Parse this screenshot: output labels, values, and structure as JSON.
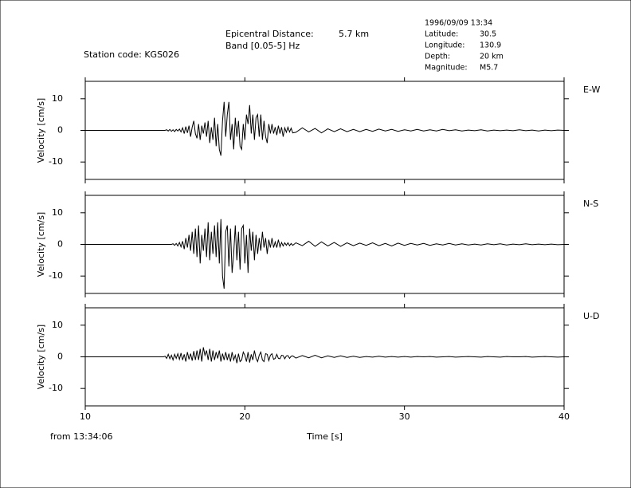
{
  "header": {
    "station": "Station code: KGS026",
    "distance_label": "Epicentral Distance:",
    "distance": "5.7 km",
    "band": "Band [0.05-5] Hz",
    "datetime": "1996/09/09 13:34",
    "params": [
      {
        "label": "Latitude:",
        "value": "30.5"
      },
      {
        "label": "Longitude:",
        "value": "130.9"
      },
      {
        "label": "Depth:",
        "value": "20 km"
      },
      {
        "label": "Magnitude:",
        "value": "M5.7"
      }
    ],
    "time_origin": "from 13:34:06"
  },
  "chart_data": [
    {
      "type": "line",
      "label": "E-W",
      "ylabel": "Velocity [cm/s]",
      "color": "#000000",
      "xlim": [
        10,
        40
      ],
      "xticks": [
        10,
        20,
        30,
        40
      ],
      "ylim": [
        -15.5,
        15.5
      ],
      "yticks": [
        -10,
        0,
        10
      ],
      "x": [
        10,
        14.9,
        15.0,
        15.1,
        15.2,
        15.3,
        15.4,
        15.5,
        15.6,
        15.7,
        15.8,
        15.9,
        16.0,
        16.1,
        16.2,
        16.3,
        16.4,
        16.5,
        16.6,
        16.7,
        16.8,
        16.9,
        17.0,
        17.1,
        17.2,
        17.3,
        17.4,
        17.5,
        17.6,
        17.7,
        17.8,
        17.9,
        18.0,
        18.1,
        18.2,
        18.3,
        18.4,
        18.5,
        18.6,
        18.7,
        18.8,
        18.9,
        19.0,
        19.1,
        19.2,
        19.3,
        19.4,
        19.5,
        19.6,
        19.7,
        19.8,
        19.9,
        20.0,
        20.1,
        20.2,
        20.3,
        20.4,
        20.5,
        20.6,
        20.7,
        20.8,
        20.9,
        21.0,
        21.1,
        21.2,
        21.3,
        21.4,
        21.5,
        21.6,
        21.7,
        21.8,
        21.9,
        22.0,
        22.1,
        22.2,
        22.3,
        22.4,
        22.5,
        22.6,
        22.7,
        22.8,
        22.9,
        23.0,
        23.2,
        23.6,
        24.0,
        24.4,
        24.8,
        25.2,
        25.6,
        26.0,
        26.4,
        26.8,
        27.2,
        27.6,
        28.0,
        28.4,
        28.8,
        29.2,
        29.6,
        30.0,
        30.4,
        30.8,
        31.2,
        31.6,
        32.0,
        32.4,
        32.8,
        33.2,
        33.6,
        34.0,
        34.4,
        34.8,
        35.2,
        35.6,
        36.0,
        36.4,
        36.8,
        37.2,
        37.6,
        38.0,
        38.4,
        38.8,
        39.2,
        39.6,
        40.0
      ],
      "values": [
        0,
        0,
        0,
        0.2,
        -0.2,
        0.3,
        -0.3,
        0.2,
        -0.4,
        0.3,
        -0.2,
        0.4,
        -0.5,
        0.8,
        -1,
        1.2,
        -0.8,
        1.5,
        -2,
        1,
        3,
        -1,
        -2.5,
        2,
        -3,
        1.5,
        -1,
        2.5,
        -2,
        3,
        -4,
        1,
        -3,
        4,
        -5,
        2,
        -6,
        -8,
        3,
        9,
        -2,
        5,
        9,
        -3,
        2,
        -6,
        4,
        -2,
        3,
        -5,
        -6,
        2,
        -3,
        5,
        2,
        8,
        -1,
        5,
        -3,
        4,
        5,
        -2,
        5,
        -3,
        3,
        -2,
        -4,
        2,
        -1,
        2,
        -1,
        1,
        -1.5,
        1.5,
        -1,
        1,
        -2,
        0.8,
        -0.6,
        1,
        -0.5,
        0.7,
        -0.8,
        -0.6,
        0.8,
        -0.5,
        0.6,
        -0.8,
        0.5,
        -0.4,
        0.5,
        -0.4,
        0.3,
        -0.4,
        0.3,
        -0.3,
        0.4,
        -0.2,
        0.3,
        -0.3,
        0.2,
        -0.2,
        0.3,
        -0.2,
        0.2,
        -0.2,
        0.3,
        -0.1,
        0.2,
        -0.2,
        0.1,
        -0.1,
        0.2,
        -0.2,
        0.1,
        -0.1,
        0.1,
        -0.1,
        0.2,
        -0.1,
        0.1,
        -0.2,
        0.1,
        -0.1,
        0.1,
        0
      ]
    },
    {
      "type": "line",
      "label": "N-S",
      "ylabel": "Velocity [cm/s]",
      "color": "#000000",
      "xlim": [
        10,
        40
      ],
      "xticks": [
        10,
        20,
        30,
        40
      ],
      "ylim": [
        -15.5,
        15.5
      ],
      "yticks": [
        -10,
        0,
        10
      ],
      "x": [
        10,
        14.9,
        15.0,
        15.1,
        15.2,
        15.3,
        15.4,
        15.5,
        15.6,
        15.7,
        15.8,
        15.9,
        16.0,
        16.1,
        16.2,
        16.3,
        16.4,
        16.5,
        16.6,
        16.7,
        16.8,
        16.9,
        17.0,
        17.1,
        17.2,
        17.3,
        17.4,
        17.5,
        17.6,
        17.7,
        17.8,
        17.9,
        18.0,
        18.1,
        18.2,
        18.3,
        18.4,
        18.5,
        18.6,
        18.7,
        18.8,
        18.9,
        19.0,
        19.1,
        19.2,
        19.3,
        19.4,
        19.5,
        19.6,
        19.7,
        19.8,
        19.9,
        20.0,
        20.1,
        20.2,
        20.3,
        20.4,
        20.5,
        20.6,
        20.7,
        20.8,
        20.9,
        21.0,
        21.1,
        21.2,
        21.3,
        21.4,
        21.5,
        21.6,
        21.7,
        21.8,
        21.9,
        22.0,
        22.1,
        22.2,
        22.3,
        22.4,
        22.5,
        22.6,
        22.7,
        22.8,
        22.9,
        23.0,
        23.2,
        23.6,
        24.0,
        24.4,
        24.8,
        25.2,
        25.6,
        26.0,
        26.4,
        26.8,
        27.2,
        27.6,
        28.0,
        28.4,
        28.8,
        29.2,
        29.6,
        30.0,
        30.4,
        30.8,
        31.2,
        31.6,
        32.0,
        32.4,
        32.8,
        33.2,
        33.6,
        34.0,
        34.4,
        34.8,
        35.2,
        35.6,
        36.0,
        36.4,
        36.8,
        37.2,
        37.6,
        38.0,
        38.4,
        38.8,
        39.2,
        39.6,
        40.0
      ],
      "values": [
        0,
        0,
        0,
        0,
        0,
        0,
        0,
        0.2,
        -0.3,
        0.3,
        -0.5,
        0.6,
        -0.8,
        1,
        -1.5,
        2,
        -1,
        3,
        -2,
        4,
        -3,
        5,
        -4,
        6,
        -6,
        3,
        -2,
        5,
        -4,
        7,
        -5,
        4,
        -3,
        6,
        -4,
        7,
        -6,
        8,
        -10,
        -14,
        4,
        6,
        -7,
        5,
        -9,
        -3,
        6,
        -5,
        4,
        -8,
        5,
        6,
        -6,
        3,
        -9,
        5,
        -2,
        4,
        -5,
        3,
        -3,
        2,
        -2,
        4,
        -1,
        2,
        -3,
        1.5,
        -1,
        2,
        -1,
        0.8,
        -1,
        1.5,
        -0.8,
        0.6,
        -0.5,
        0.5,
        -0.3,
        0.5,
        -0.4,
        0.3,
        -0.3,
        0.5,
        -0.4,
        1,
        -0.6,
        0.8,
        -0.5,
        0.6,
        -0.6,
        0.5,
        -0.4,
        0.4,
        -0.3,
        0.5,
        -0.4,
        0.3,
        -0.5,
        0.4,
        -0.3,
        0.3,
        -0.2,
        0.3,
        -0.3,
        0.2,
        -0.2,
        0.3,
        -0.2,
        0.2,
        -0.2,
        0.1,
        -0.2,
        0.2,
        -0.1,
        0.2,
        -0.2,
        0.1,
        -0.1,
        0.2,
        -0.1,
        0.1,
        -0.1,
        0.1,
        -0.1,
        0
      ]
    },
    {
      "type": "line",
      "label": "U-D",
      "ylabel": "Velocity [cm/s]",
      "xlabel": "Time [s]",
      "color": "#000000",
      "xlim": [
        10,
        40
      ],
      "xticks": [
        10,
        20,
        30,
        40
      ],
      "ylim": [
        -15.5,
        15.5
      ],
      "yticks": [
        -10,
        0,
        10
      ],
      "x": [
        10,
        14.9,
        15.0,
        15.1,
        15.2,
        15.3,
        15.4,
        15.5,
        15.6,
        15.7,
        15.8,
        15.9,
        16.0,
        16.1,
        16.2,
        16.3,
        16.4,
        16.5,
        16.6,
        16.7,
        16.8,
        16.9,
        17.0,
        17.1,
        17.2,
        17.3,
        17.4,
        17.5,
        17.6,
        17.7,
        17.8,
        17.9,
        18.0,
        18.1,
        18.2,
        18.3,
        18.4,
        18.5,
        18.6,
        18.7,
        18.8,
        18.9,
        19.0,
        19.1,
        19.2,
        19.3,
        19.4,
        19.5,
        19.6,
        19.7,
        19.8,
        19.9,
        20.0,
        20.1,
        20.2,
        20.3,
        20.4,
        20.5,
        20.6,
        20.7,
        20.8,
        20.9,
        21.0,
        21.1,
        21.2,
        21.3,
        21.4,
        21.5,
        21.6,
        21.7,
        21.8,
        21.9,
        22.0,
        22.1,
        22.2,
        22.3,
        22.4,
        22.5,
        22.6,
        22.7,
        22.8,
        22.9,
        23.0,
        23.2,
        23.6,
        24.0,
        24.4,
        24.8,
        25.2,
        25.6,
        26.0,
        26.4,
        26.8,
        27.2,
        27.6,
        28.0,
        28.4,
        28.8,
        29.2,
        29.6,
        30.0,
        30.4,
        30.8,
        31.2,
        31.6,
        32.0,
        32.4,
        32.8,
        33.2,
        33.6,
        34.0,
        34.4,
        34.8,
        35.2,
        35.6,
        36.0,
        36.4,
        36.8,
        37.2,
        37.6,
        38.0,
        38.4,
        38.8,
        39.2,
        39.6,
        40.0
      ],
      "values": [
        0,
        0,
        0.2,
        -0.5,
        0.8,
        -0.6,
        0.5,
        -1,
        0.8,
        -0.5,
        1,
        -0.8,
        1.2,
        -1,
        0.8,
        -1.5,
        1.5,
        -0.8,
        1,
        -1.2,
        1.8,
        -1,
        2,
        -1,
        2.5,
        -1.5,
        3,
        0.5,
        2,
        -1,
        2.5,
        -1.5,
        2,
        -1,
        1.5,
        -0.5,
        2,
        -1.5,
        1,
        -1,
        1.5,
        -1,
        1,
        -1.5,
        1.5,
        -1,
        0.5,
        -2,
        1,
        -1.5,
        -1,
        1.5,
        0.5,
        -1.5,
        1.5,
        -1.8,
        0.8,
        -1,
        2,
        -0.5,
        -1.5,
        0.5,
        1.5,
        -1,
        -1.5,
        1,
        0.8,
        -1.2,
        0.5,
        1,
        -0.8,
        -0.5,
        0.8,
        -0.5,
        -0.6,
        0.5,
        0.4,
        -0.6,
        0.3,
        0.4,
        -0.5,
        0.2,
        0.3,
        -0.4,
        0.4,
        -0.3,
        0.5,
        -0.3,
        0.3,
        -0.2,
        0.3,
        -0.2,
        0.2,
        -0.2,
        0.1,
        -0.1,
        0.2,
        -0.1,
        0.1,
        -0.1,
        0.1,
        -0.1,
        0.1,
        0,
        0.1,
        -0.1,
        0,
        0.1,
        -0.1,
        0,
        0.1,
        0,
        -0.1,
        0.1,
        0,
        -0.1,
        0.1,
        0,
        0,
        0.1,
        -0.1,
        0,
        0.1,
        0,
        -0.1,
        0
      ]
    }
  ]
}
